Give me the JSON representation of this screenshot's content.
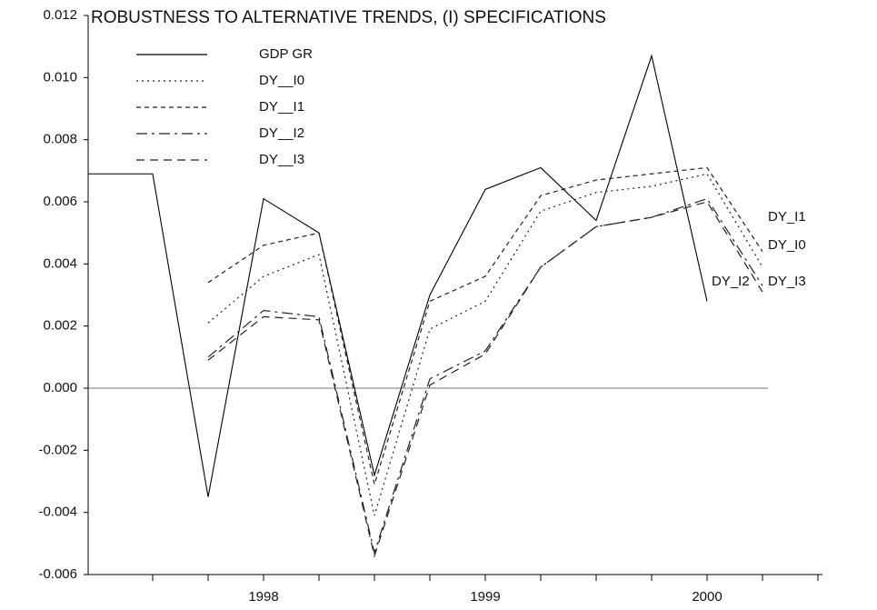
{
  "chart_data": {
    "type": "line",
    "title": "ROBUSTNESS TO ALTERNATIVE TRENDS, (I) SPECIFICATIONS",
    "categories": [
      null,
      null,
      null,
      "1998",
      null,
      null,
      null,
      "1999",
      null,
      null,
      null,
      "2000",
      null,
      null
    ],
    "ylim": [
      -0.006,
      0.012
    ],
    "yticks": [
      -0.006,
      -0.004,
      -0.002,
      {
        "value": 0,
        "label": "0.000"
      },
      0.002,
      0.004,
      0.006,
      0.008,
      {
        "value": 0.01,
        "label": "0.010"
      },
      0.012
    ],
    "zero_line": true,
    "legend": "top-left",
    "series": [
      {
        "name": "GDP GR",
        "color": "#000000",
        "line_style": "solid",
        "values": [
          0.0069,
          0.0069,
          -0.0035,
          0.0061,
          0.005,
          -0.0028,
          0.003,
          0.0064,
          0.0071,
          0.0054,
          0.0107,
          0.0028,
          null,
          null
        ]
      },
      {
        "name": "DY__I0",
        "color": "#222222",
        "line_style": "dotted",
        "values": [
          null,
          null,
          0.0021,
          0.0036,
          0.0043,
          -0.0041,
          0.0019,
          0.0028,
          0.0057,
          0.0063,
          0.0065,
          0.0069,
          0.0039,
          null
        ]
      },
      {
        "name": "DY__I1",
        "color": "#222222",
        "line_style": "dashed",
        "values": [
          null,
          null,
          0.0034,
          0.0046,
          0.005,
          -0.0031,
          0.0028,
          0.0036,
          0.0062,
          0.0067,
          0.0069,
          0.0071,
          0.0044,
          null
        ]
      },
      {
        "name": "DY__I2",
        "color": "#222222",
        "line_style": "dashdot",
        "values": [
          null,
          null,
          0.001,
          0.0025,
          0.0023,
          -0.0053,
          0.0003,
          0.0012,
          0.0039,
          0.0052,
          0.0055,
          0.0061,
          0.0033,
          null
        ]
      },
      {
        "name": "DY__I3",
        "color": "#222222",
        "line_style": "longdash",
        "values": [
          null,
          null,
          0.0009,
          0.0023,
          0.0022,
          -0.0054,
          0.0001,
          0.0011,
          0.0039,
          0.0052,
          0.0055,
          0.006,
          0.0031,
          null
        ]
      }
    ],
    "annotations": [
      "DY_I1",
      "DY_I0",
      "DY_I2",
      "DY_I3"
    ]
  }
}
